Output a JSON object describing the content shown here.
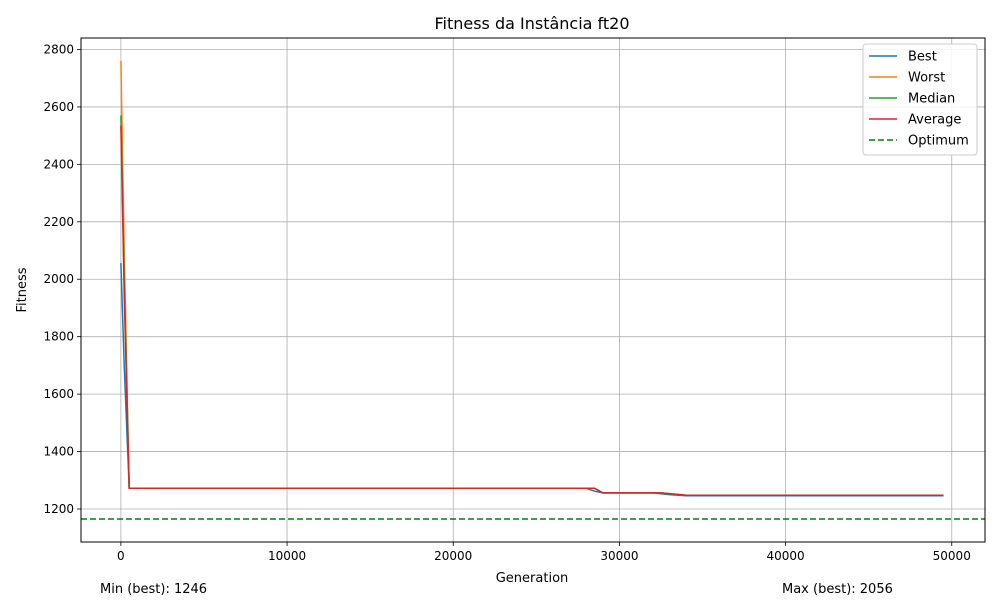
{
  "chart_data": {
    "type": "line",
    "title": "Fitness da Instância ft20",
    "xlabel": "Generation",
    "ylabel": "Fitness",
    "xlim": [
      -2400,
      52000
    ],
    "ylim": [
      1085,
      2840
    ],
    "xticks": [
      0,
      10000,
      20000,
      30000,
      40000,
      50000
    ],
    "yticks": [
      1200,
      1400,
      1600,
      1800,
      2000,
      2200,
      2400,
      2600,
      2800
    ],
    "grid": true,
    "legend_position": "top-right",
    "series": [
      {
        "name": "Best",
        "color": "#1f77b4",
        "dash": "solid",
        "x": [
          0,
          200,
          500,
          28000,
          28500,
          29000,
          32000,
          32500,
          33000,
          34000,
          49500
        ],
        "y": [
          2056,
          1700,
          1272,
          1272,
          1262,
          1256,
          1256,
          1253,
          1250,
          1246,
          1246
        ]
      },
      {
        "name": "Worst",
        "color": "#ff7f0e",
        "dash": "solid",
        "x": [
          0,
          200,
          500,
          28500,
          29000,
          32500,
          34000,
          49500
        ],
        "y": [
          2760,
          2100,
          1272,
          1272,
          1256,
          1256,
          1248,
          1248
        ]
      },
      {
        "name": "Median",
        "color": "#2ca02c",
        "dash": "solid",
        "x": [
          0,
          200,
          500,
          28500,
          29000,
          32500,
          34000,
          49500
        ],
        "y": [
          2570,
          2000,
          1272,
          1272,
          1256,
          1256,
          1248,
          1248
        ]
      },
      {
        "name": "Average",
        "color": "#d62728",
        "dash": "solid",
        "x": [
          0,
          200,
          500,
          28500,
          29000,
          32500,
          34000,
          49500
        ],
        "y": [
          2535,
          1950,
          1272,
          1272,
          1256,
          1256,
          1248,
          1248
        ]
      },
      {
        "name": "Optimum",
        "color": "#008000",
        "dash": "dashed",
        "hline": 1165
      }
    ]
  },
  "notes": {
    "min": "Min (best): 1246",
    "max": "Max (best): 2056"
  }
}
